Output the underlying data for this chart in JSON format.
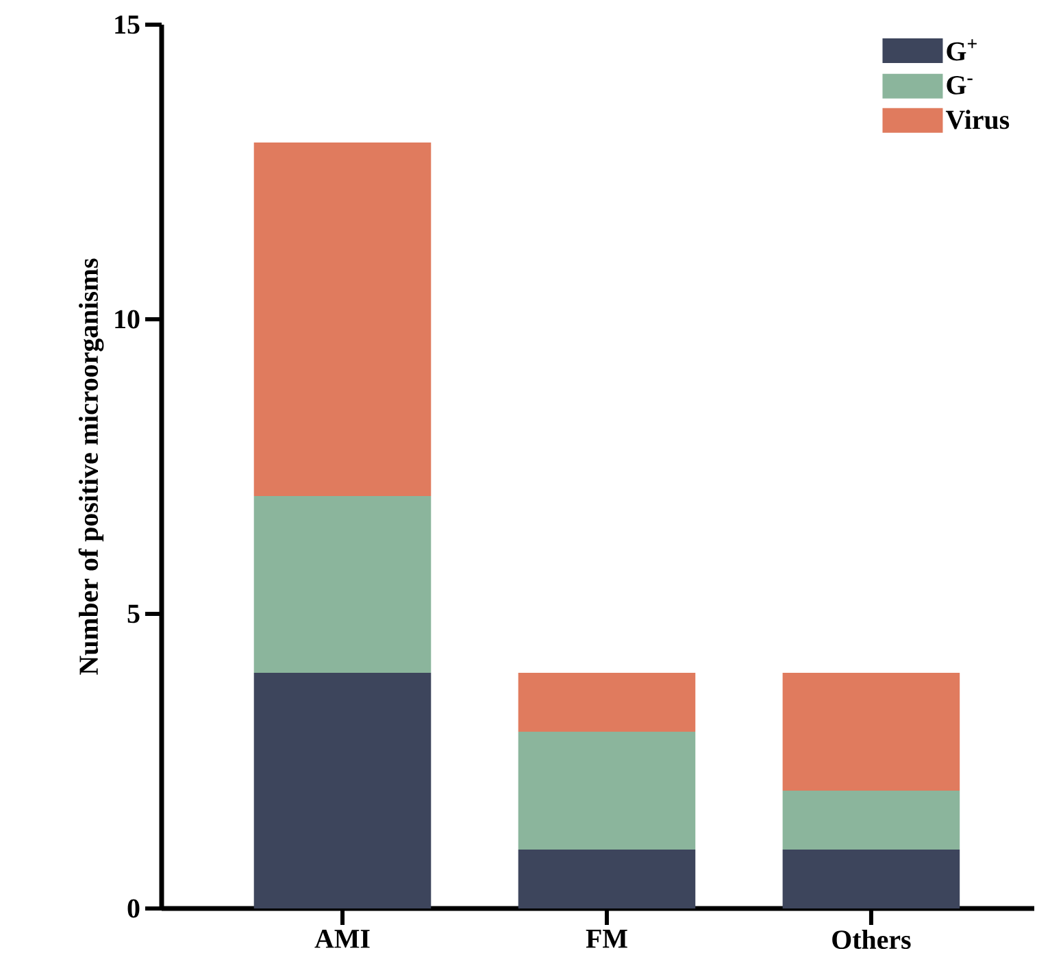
{
  "chart_data": {
    "type": "bar",
    "stacked": true,
    "ylabel": "Number of positive microorganisms",
    "categories": [
      "AMI",
      "FM",
      "Others"
    ],
    "series": [
      {
        "name": "G$^{+}$",
        "color": "#3d455c",
        "values": [
          4,
          1,
          1
        ]
      },
      {
        "name": "G$^{-}$",
        "color": "#8bb59c",
        "values": [
          3,
          2,
          1
        ]
      },
      {
        "name": "Virus",
        "color": "#e07b5e",
        "values": [
          6,
          1,
          2
        ]
      }
    ],
    "ylim": [
      0,
      15
    ],
    "yticks": [
      0,
      5,
      10,
      15
    ],
    "legend": "top right"
  }
}
